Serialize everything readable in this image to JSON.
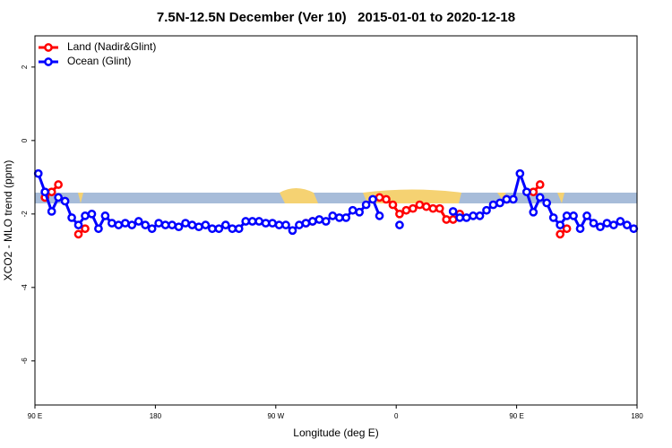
{
  "chart_data": {
    "type": "line",
    "title": "7.5N-12.5N December (Ver 10)   2015-01-01 to 2020-12-18",
    "x_label": "Longitude (deg E)",
    "y_label": "XCO2 - MLO trend (ppm)",
    "xlim": [
      90,
      540
    ],
    "ylim": [
      -7.2,
      2.85
    ],
    "xticks": [
      {
        "value": 90,
        "label": "90 E"
      },
      180,
      {
        "value": 270,
        "label": "90 W"
      },
      {
        "value": 360,
        "label": "0"
      },
      {
        "value": 450,
        "label": "90 E"
      },
      {
        "value": 540,
        "label": "180"
      }
    ],
    "yticks": [
      2,
      0,
      -2,
      -4,
      -6
    ],
    "legend": "topleft",
    "x": [
      92.5,
      97.5,
      102.5,
      107.5,
      112.5,
      117.5,
      122.5,
      127.5,
      132.5,
      137.5,
      142.5,
      147.5,
      152.5,
      157.5,
      162.5,
      167.5,
      172.5,
      177.5,
      182.5,
      187.5,
      192.5,
      197.5,
      202.5,
      207.5,
      212.5,
      217.5,
      222.5,
      227.5,
      232.5,
      237.5,
      242.5,
      247.5,
      252.5,
      257.5,
      262.5,
      267.5,
      272.5,
      277.5,
      282.5,
      287.5,
      292.5,
      297.5,
      302.5,
      307.5,
      312.5,
      317.5,
      322.5,
      327.5,
      332.5,
      337.5,
      342.5,
      347.5,
      352.5,
      357.5,
      362.5,
      367.5,
      372.5,
      377.5,
      382.5,
      387.5,
      392.5,
      397.5,
      402.5,
      407.5,
      412.5,
      417.5,
      422.5,
      427.5,
      432.5,
      437.5,
      442.5,
      447.5,
      452.5,
      457.5,
      462.5,
      467.5,
      472.5,
      477.5,
      482.5,
      487.5,
      492.5,
      497.5,
      502.5,
      507.5,
      512.5,
      517.5,
      522.5,
      527.5,
      532.5,
      537.5
    ],
    "series": [
      {
        "name": "Land (Nadir&Glint)",
        "color": "#ff0000",
        "values": [
          null,
          -1.55,
          -1.4,
          -1.2,
          null,
          null,
          -2.55,
          -2.4,
          null,
          null,
          null,
          null,
          null,
          null,
          null,
          null,
          null,
          null,
          null,
          null,
          null,
          null,
          null,
          null,
          null,
          null,
          null,
          null,
          null,
          null,
          null,
          null,
          null,
          null,
          null,
          null,
          null,
          null,
          null,
          null,
          -2.25,
          -2.2,
          null,
          null,
          null,
          null,
          null,
          null,
          null,
          null,
          null,
          -1.55,
          -1.6,
          -1.75,
          -2.0,
          -1.9,
          -1.85,
          -1.75,
          -1.8,
          -1.85,
          -1.85,
          -2.15,
          -2.15,
          -2.0,
          null,
          null,
          null,
          null,
          null,
          null,
          -1.6,
          null,
          null,
          null,
          -1.4,
          -1.2,
          null,
          null,
          -2.55,
          -2.4,
          null,
          null,
          null,
          null,
          null,
          null,
          null,
          null,
          null,
          null
        ]
      },
      {
        "name": "Ocean (Glint)",
        "color": "#0000ff",
        "values": [
          -0.9,
          -1.4,
          -1.93,
          -1.55,
          -1.65,
          -2.1,
          -2.3,
          -2.05,
          -2.0,
          -2.4,
          -2.05,
          -2.25,
          -2.3,
          -2.25,
          -2.3,
          -2.2,
          -2.3,
          -2.4,
          -2.25,
          -2.3,
          -2.3,
          -2.35,
          -2.25,
          -2.3,
          -2.35,
          -2.3,
          -2.4,
          -2.4,
          -2.3,
          -2.4,
          -2.4,
          -2.2,
          -2.2,
          -2.2,
          -2.25,
          -2.25,
          -2.3,
          -2.3,
          -2.45,
          -2.3,
          -2.25,
          -2.2,
          -2.15,
          -2.2,
          -2.05,
          -2.1,
          -2.1,
          -1.9,
          -1.95,
          -1.75,
          -1.6,
          -2.05,
          null,
          null,
          -2.3,
          null,
          null,
          null,
          null,
          null,
          null,
          null,
          -1.93,
          -2.1,
          -2.1,
          -2.05,
          -2.05,
          -1.9,
          -1.75,
          -1.7,
          -1.6,
          -1.6,
          -0.9,
          -1.4,
          -1.95,
          -1.55,
          -1.7,
          -2.1,
          -2.3,
          -2.05,
          -2.05,
          -2.4,
          -2.05,
          -2.25,
          -2.35,
          -2.25,
          -2.3,
          -2.2,
          -2.3,
          -2.4
        ]
      }
    ]
  }
}
